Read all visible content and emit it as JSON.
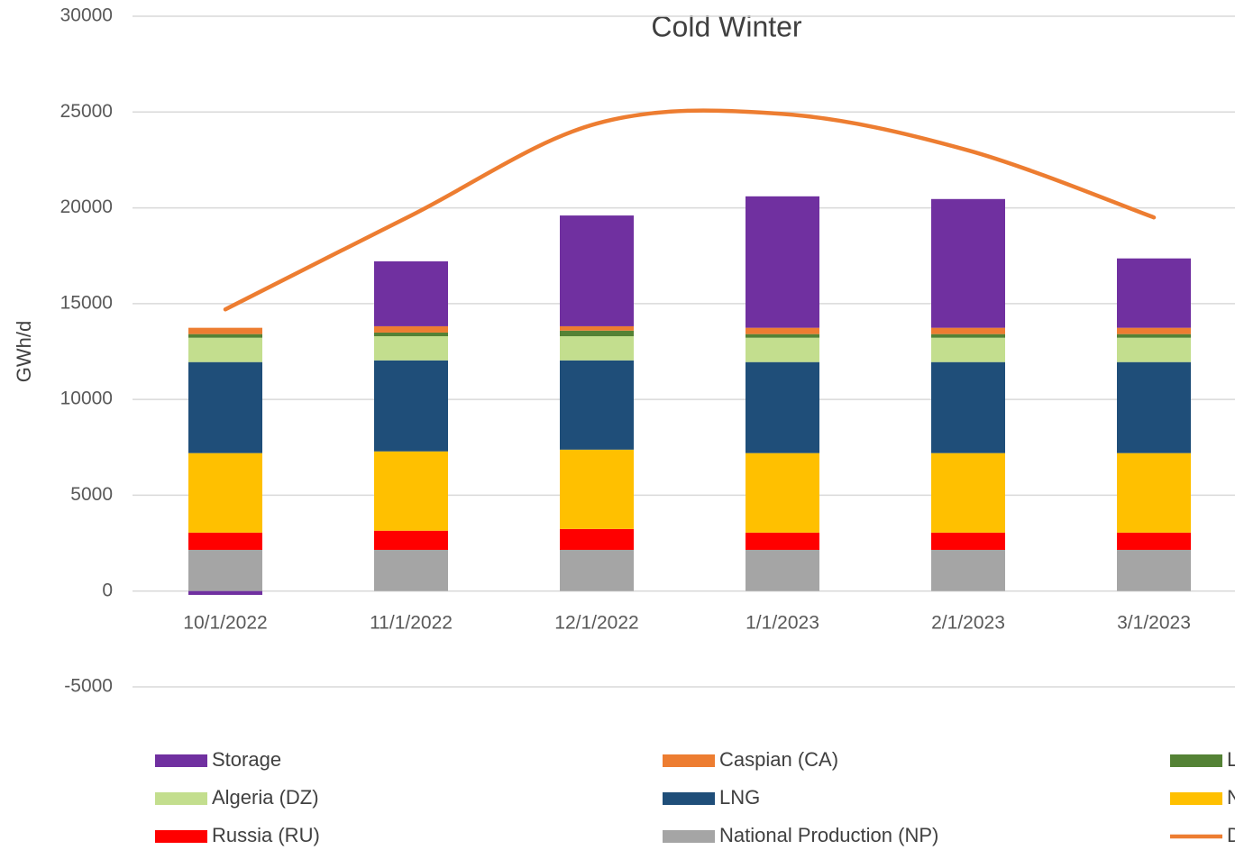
{
  "chart_data": {
    "type": "bar",
    "title": "Cold Winter",
    "y_label": "GWh/d",
    "categories": [
      "10/1/2022",
      "11/1/2022",
      "12/1/2022",
      "1/1/2023",
      "2/1/2023",
      "3/1/2023"
    ],
    "series": [
      {
        "name": "Storage",
        "color": "#7030a0",
        "values": [
          -200,
          3390,
          5780,
          6860,
          6720,
          3620
        ]
      },
      {
        "name": "Caspian (CA)",
        "color": "#ed7d31",
        "values": [
          330,
          330,
          230,
          330,
          330,
          330
        ]
      },
      {
        "name": "L",
        "color": "#548235",
        "values": [
          190,
          190,
          290,
          190,
          190,
          190
        ]
      },
      {
        "name": "Algeria (DZ)",
        "color": "#c3de8e",
        "values": [
          1270,
          1260,
          1260,
          1270,
          1270,
          1270
        ]
      },
      {
        "name": "LNG",
        "color": "#1f4e79",
        "values": [
          4750,
          4750,
          4660,
          4750,
          4750,
          4750
        ]
      },
      {
        "name": "N",
        "color": "#ffc000",
        "values": [
          4150,
          4140,
          4140,
          4150,
          4150,
          4150
        ]
      },
      {
        "name": "Russia (RU)",
        "color": "#ff0000",
        "values": [
          900,
          1000,
          1090,
          900,
          900,
          900
        ]
      },
      {
        "name": "National Production (NP)",
        "color": "#a5a5a5",
        "values": [
          2150,
          2150,
          2150,
          2150,
          2150,
          2150
        ]
      },
      {
        "name": "D",
        "color": "#ed7d31",
        "type": "line",
        "values": [
          14700,
          19600,
          24400,
          24900,
          23000,
          19500
        ]
      }
    ],
    "ylim": [
      -5000,
      30000
    ],
    "yticks": [
      -5000,
      0,
      5000,
      10000,
      15000,
      20000,
      25000,
      30000
    ],
    "grid": true
  }
}
